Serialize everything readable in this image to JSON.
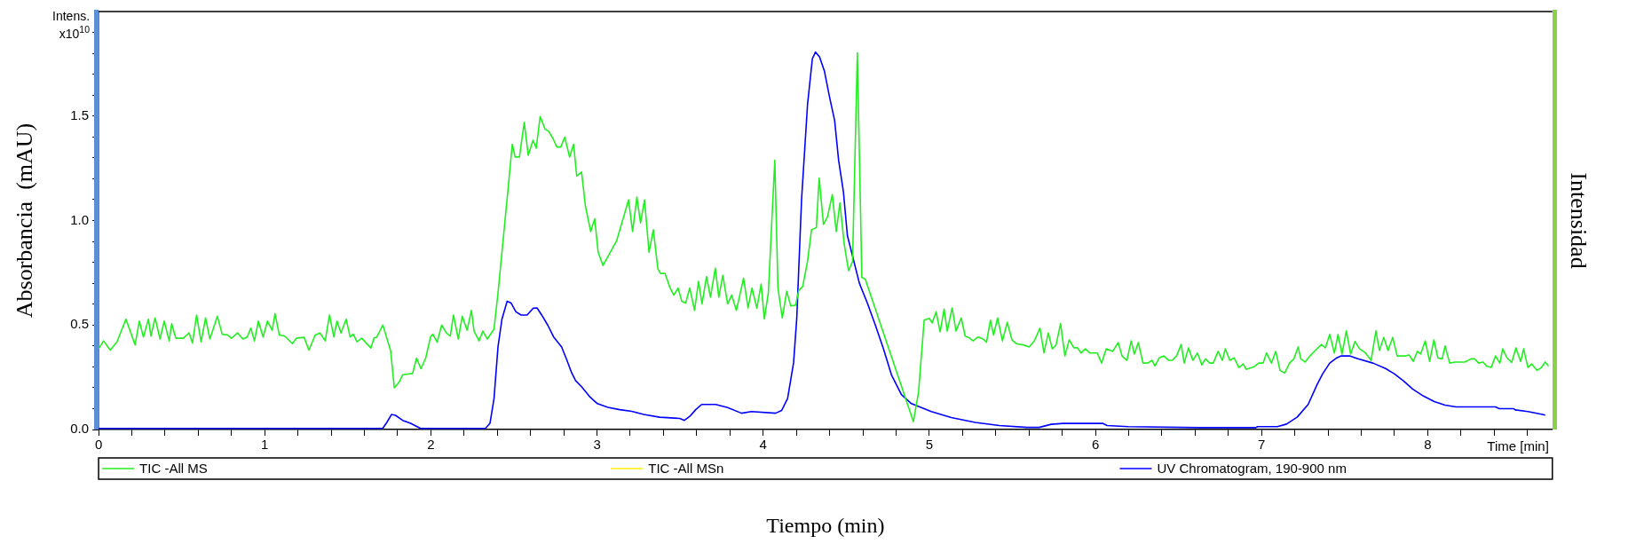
{
  "chart_data": {
    "type": "line",
    "xlabel": "Tiempo (min)",
    "ylabel": "Absorbancia  (mAU)",
    "y2label": "Intensidad",
    "annotations": [
      "Intens.\nx10$^{10}$",
      "Time [min]"
    ],
    "xlim": [
      0,
      8.75
    ],
    "ylim": [
      0,
      2
    ],
    "xticks": [
      0,
      {
        "value": 0.2,
        "label": null
      },
      {
        "value": 0.4,
        "label": null
      },
      {
        "value": 0.6,
        "label": null
      },
      {
        "value": 0.8,
        "label": null
      },
      1,
      {
        "value": 1.2,
        "label": null
      },
      {
        "value": 1.4,
        "label": null
      },
      {
        "value": 1.6,
        "label": null
      },
      {
        "value": 1.8,
        "label": null
      },
      2,
      {
        "value": 2.2,
        "label": null
      },
      {
        "value": 2.4,
        "label": null
      },
      {
        "value": 2.6,
        "label": null
      },
      {
        "value": 2.8,
        "label": null
      },
      3,
      {
        "value": 3.2,
        "label": null
      },
      {
        "value": 3.4,
        "label": null
      },
      {
        "value": 3.6,
        "label": null
      },
      {
        "value": 3.8,
        "label": null
      },
      4,
      {
        "value": 4.2,
        "label": null
      },
      {
        "value": 4.4,
        "label": null
      },
      {
        "value": 4.6,
        "label": null
      },
      {
        "value": 4.8,
        "label": null
      },
      5,
      {
        "value": 5.2,
        "label": null
      },
      {
        "value": 5.4,
        "label": null
      },
      {
        "value": 5.6,
        "label": null
      },
      {
        "value": 5.8,
        "label": null
      },
      6,
      {
        "value": 6.2,
        "label": null
      },
      {
        "value": 6.4,
        "label": null
      },
      {
        "value": 6.6,
        "label": null
      },
      {
        "value": 6.8,
        "label": null
      },
      7,
      {
        "value": 7.2,
        "label": null
      },
      {
        "value": 7.4,
        "label": null
      },
      {
        "value": 7.6,
        "label": null
      },
      {
        "value": 7.8,
        "label": null
      },
      8,
      {
        "value": 8.2,
        "label": null
      },
      {
        "value": 8.4,
        "label": null
      },
      {
        "value": 8.6,
        "label": null
      }
    ],
    "yticks": [
      {
        "value": 0,
        "label": "0.0"
      },
      {
        "value": 0.1,
        "label": null
      },
      {
        "value": 0.2,
        "label": null
      },
      {
        "value": 0.3,
        "label": null
      },
      {
        "value": 0.4,
        "label": null
      },
      0.5,
      {
        "value": 0.6,
        "label": null
      },
      {
        "value": 0.7,
        "label": null
      },
      {
        "value": 0.8,
        "label": null
      },
      {
        "value": 0.9,
        "label": null
      },
      {
        "value": 1,
        "label": "1.0"
      },
      {
        "value": 1.1,
        "label": null
      },
      {
        "value": 1.2,
        "label": null
      },
      {
        "value": 1.3,
        "label": null
      },
      {
        "value": 1.4,
        "label": null
      },
      1.5,
      {
        "value": 1.6,
        "label": null
      },
      {
        "value": 1.7,
        "label": null
      },
      {
        "value": 1.8,
        "label": null
      },
      {
        "value": 1.9,
        "label": null
      }
    ],
    "grid": false,
    "legend": "bottom",
    "marker": "none",
    "line_style": "solid",
    "series": [
      {
        "name": "TIC -All MS",
        "color": "#22ee22",
        "x": [
          0,
          0.03,
          0.07,
          0.11,
          0.165,
          0.22,
          0.245,
          0.27,
          0.3,
          0.315,
          0.34,
          0.37,
          0.395,
          0.425,
          0.44,
          0.465,
          0.51,
          0.545,
          0.565,
          0.59,
          0.617,
          0.644,
          0.67,
          0.715,
          0.744,
          0.778,
          0.8,
          0.837,
          0.868,
          0.895,
          0.916,
          0.938,
          0.962,
          0.99,
          1.017,
          1.045,
          1.062,
          1.088,
          1.12,
          1.167,
          1.19,
          1.237,
          1.266,
          1.304,
          1.333,
          1.364,
          1.39,
          1.416,
          1.435,
          1.459,
          1.49,
          1.514,
          1.533,
          1.555,
          1.584,
          1.639,
          1.658,
          1.675,
          1.711,
          1.758,
          1.78,
          1.81,
          1.83,
          1.89,
          1.914,
          1.94,
          1.969,
          1.998,
          2.012,
          2.038,
          2.065,
          2.093,
          2.117,
          2.136,
          2.165,
          2.189,
          2.218,
          2.244,
          2.26,
          2.29,
          2.313,
          2.34,
          2.38,
          2.404,
          2.464,
          2.49,
          2.507,
          2.533,
          2.562,
          2.586,
          2.615,
          2.634,
          2.658,
          2.687,
          2.708,
          2.734,
          2.758,
          2.782,
          2.806,
          2.835,
          2.859,
          2.878,
          2.907,
          2.93,
          2.962,
          2.986,
          3.007,
          3.036,
          3.118,
          3.19,
          3.214,
          3.24,
          3.262,
          3.286,
          3.313,
          3.339,
          3.366,
          3.382,
          3.409,
          3.438,
          3.462,
          3.488,
          3.51,
          3.534,
          3.558,
          3.587,
          3.611,
          3.632,
          3.659,
          3.683,
          3.712,
          3.733,
          3.757,
          3.786,
          3.81,
          3.839,
          3.882,
          3.909,
          3.933,
          3.962,
          3.988,
          4.007,
          4.031,
          4.07,
          4.089,
          4.115,
          4.142,
          4.166,
          4.195,
          4.214,
          4.238,
          4.267,
          4.291,
          4.32,
          4.337,
          4.363,
          4.387,
          4.416,
          4.44,
          4.462,
          4.488,
          4.514,
          4.538,
          4.567,
          4.594,
          4.615,
          4.904,
          4.935,
          4.969,
          5.0,
          5.017,
          5.041,
          5.065,
          5.089,
          5.108,
          5.137,
          5.161,
          5.192,
          5.216,
          5.24,
          5.264,
          5.293,
          5.324,
          5.344,
          5.368,
          5.387,
          5.411,
          5.44,
          5.469,
          5.498,
          5.522,
          5.565,
          5.601,
          5.632,
          5.666,
          5.69,
          5.716,
          5.74,
          5.762,
          5.79,
          5.816,
          5.842,
          5.87,
          5.892,
          5.913,
          5.939,
          5.967,
          6.011,
          6.037,
          6.065,
          6.104,
          6.137,
          6.16,
          6.189,
          6.215,
          6.234,
          6.258,
          6.286,
          6.315,
          6.341,
          6.358,
          6.384,
          6.412,
          6.44,
          6.462,
          6.488,
          6.516,
          6.534,
          6.56,
          6.586,
          6.614,
          6.64,
          6.662,
          6.688,
          6.709,
          6.738,
          6.764,
          6.781,
          6.809,
          6.835,
          6.863,
          6.889,
          6.907,
          6.954,
          6.983,
          7.009,
          7.03,
          7.059,
          7.085,
          7.111,
          7.139,
          7.168,
          7.194,
          7.22,
          7.236,
          7.262,
          7.291,
          7.323,
          7.36,
          7.384,
          7.41,
          7.438,
          7.46,
          7.484,
          7.51,
          7.536,
          7.562,
          7.59,
          7.622,
          7.659,
          7.688,
          7.709,
          7.735,
          7.761,
          7.789,
          7.816,
          7.866,
          7.887,
          7.913,
          7.937,
          7.957,
          7.985,
          8.011,
          8.037,
          8.061,
          8.087,
          8.104,
          8.132,
          8.165,
          8.223,
          8.26,
          8.282,
          8.306,
          8.332,
          8.354,
          8.382,
          8.408,
          8.434,
          8.451,
          8.477,
          8.505,
          8.531,
          8.559,
          8.577,
          8.603,
          8.625,
          8.657,
          8.685,
          8.707,
          8.727
        ],
        "values": [
          0.386,
          0.424,
          0.38,
          0.418,
          0.528,
          0.405,
          0.519,
          0.443,
          0.528,
          0.447,
          0.534,
          0.433,
          0.519,
          0.424,
          0.506,
          0.437,
          0.437,
          0.462,
          0.414,
          0.548,
          0.42,
          0.534,
          0.433,
          0.542,
          0.456,
          0.452,
          0.437,
          0.462,
          0.433,
          0.443,
          0.485,
          0.424,
          0.519,
          0.443,
          0.519,
          0.475,
          0.555,
          0.452,
          0.447,
          0.411,
          0.437,
          0.441,
          0.38,
          0.452,
          0.462,
          0.424,
          0.548,
          0.443,
          0.519,
          0.462,
          0.528,
          0.443,
          0.456,
          0.42,
          0.437,
          0.39,
          0.437,
          0.443,
          0.5,
          0.376,
          0.2,
          0.228,
          0.262,
          0.268,
          0.342,
          0.291,
          0.342,
          0.443,
          0.456,
          0.418,
          0.5,
          0.462,
          0.447,
          0.548,
          0.433,
          0.542,
          0.475,
          0.57,
          0.471,
          0.424,
          0.471,
          0.433,
          0.481,
          0.652,
          1.146,
          1.365,
          1.304,
          1.304,
          1.47,
          1.312,
          1.384,
          1.346,
          1.498,
          1.437,
          1.428,
          1.394,
          1.352,
          1.352,
          1.399,
          1.304,
          1.365,
          1.213,
          1.232,
          1.07,
          0.947,
          1.008,
          0.848,
          0.785,
          0.903,
          1.099,
          0.947,
          1.112,
          0.989,
          1.099,
          0.848,
          0.956,
          0.77,
          0.747,
          0.747,
          0.681,
          0.643,
          0.677,
          0.614,
          0.605,
          0.677,
          0.57,
          0.709,
          0.601,
          0.732,
          0.633,
          0.772,
          0.633,
          0.738,
          0.601,
          0.643,
          0.57,
          0.724,
          0.582,
          0.677,
          0.58,
          0.696,
          0.529,
          0.652,
          1.289,
          0.677,
          0.534,
          0.662,
          0.591,
          0.595,
          0.665,
          0.684,
          0.804,
          0.956,
          0.966,
          1.203,
          0.981,
          1.017,
          1.124,
          0.947,
          1.084,
          0.886,
          0.76,
          0.804,
          1.802,
          0.728,
          0.719,
          0.038,
          0.177,
          0.523,
          0.532,
          0.51,
          0.563,
          0.468,
          0.576,
          0.471,
          0.582,
          0.471,
          0.534,
          0.447,
          0.439,
          0.424,
          0.443,
          0.433,
          0.418,
          0.523,
          0.452,
          0.534,
          0.424,
          0.513,
          0.428,
          0.411,
          0.405,
          0.395,
          0.424,
          0.485,
          0.367,
          0.462,
          0.386,
          0.403,
          0.507,
          0.352,
          0.429,
          0.391,
          0.391,
          0.366,
          0.386,
          0.366,
          0.366,
          0.318,
          0.386,
          0.374,
          0.416,
          0.352,
          0.331,
          0.424,
          0.361,
          0.416,
          0.318,
          0.318,
          0.331,
          0.304,
          0.343,
          0.352,
          0.331,
          0.331,
          0.352,
          0.407,
          0.318,
          0.391,
          0.331,
          0.366,
          0.309,
          0.338,
          0.318,
          0.318,
          0.374,
          0.331,
          0.386,
          0.331,
          0.343,
          0.297,
          0.314,
          0.288,
          0.3,
          0.318,
          0.318,
          0.366,
          0.318,
          0.374,
          0.283,
          0.27,
          0.318,
          0.338,
          0.395,
          0.338,
          0.323,
          0.352,
          0.378,
          0.407,
          0.391,
          0.455,
          0.366,
          0.455,
          0.361,
          0.472,
          0.361,
          0.421,
          0.386,
          0.369,
          0.331,
          0.472,
          0.378,
          0.441,
          0.378,
          0.441,
          0.352,
          0.352,
          0.357,
          0.326,
          0.374,
          0.361,
          0.424,
          0.326,
          0.429,
          0.343,
          0.338,
          0.4,
          0.318,
          0.323,
          0.323,
          0.338,
          0.338,
          0.318,
          0.323,
          0.304,
          0.297,
          0.352,
          0.318,
          0.386,
          0.343,
          0.321,
          0.391,
          0.326,
          0.386,
          0.297,
          0.314,
          0.283,
          0.297,
          0.323,
          0.304
        ]
      },
      {
        "name": "TIC -All MSn",
        "color": "#ffee00"
      },
      {
        "name": "UV Chromatogram, 190-900 nm",
        "color": "#0000ff",
        "x": [
          0,
          1.71,
          1.735,
          1.763,
          1.787,
          1.83,
          1.878,
          1.938,
          2.328,
          2.356,
          2.38,
          2.404,
          2.428,
          2.459,
          2.483,
          2.512,
          2.543,
          2.579,
          2.615,
          2.639,
          2.667,
          2.703,
          2.739,
          2.787,
          2.818,
          2.847,
          2.871,
          2.907,
          2.955,
          3.002,
          3.065,
          3.137,
          3.209,
          3.281,
          3.377,
          3.498,
          3.526,
          3.558,
          3.594,
          3.63,
          3.714,
          3.786,
          3.87,
          3.93,
          4.075,
          4.111,
          4.147,
          4.183,
          4.202,
          4.231,
          4.267,
          4.296,
          4.315,
          4.339,
          4.368,
          4.399,
          4.43,
          4.454,
          4.483,
          4.507,
          4.543,
          4.579,
          4.627,
          4.675,
          4.724,
          4.772,
          4.832,
          4.892,
          5.012,
          5.132,
          5.276,
          5.421,
          5.589,
          5.661,
          5.733,
          5.805,
          6.046,
          6.07,
          6.195,
          6.629,
          6.965,
          6.976,
          7.095,
          7.15,
          7.215,
          7.28,
          7.334,
          7.367,
          7.41,
          7.453,
          7.479,
          7.529,
          7.584,
          7.67,
          7.746,
          7.8,
          7.855,
          7.909,
          7.974,
          8.039,
          8.104,
          8.169,
          8.408,
          8.43,
          8.516,
          8.527,
          8.603,
          8.69,
          8.707
        ],
        "values": [
          0.005,
          0.005,
          0.034,
          0.072,
          0.068,
          0.044,
          0.03,
          0.005,
          0.005,
          0.03,
          0.148,
          0.395,
          0.529,
          0.614,
          0.605,
          0.563,
          0.548,
          0.548,
          0.58,
          0.582,
          0.548,
          0.5,
          0.443,
          0.395,
          0.333,
          0.272,
          0.234,
          0.205,
          0.158,
          0.124,
          0.106,
          0.095,
          0.087,
          0.072,
          0.059,
          0.053,
          0.044,
          0.063,
          0.095,
          0.12,
          0.12,
          0.105,
          0.078,
          0.086,
          0.078,
          0.091,
          0.148,
          0.319,
          0.529,
          1.099,
          1.555,
          1.774,
          1.806,
          1.783,
          1.717,
          1.593,
          1.479,
          1.289,
          1.137,
          0.928,
          0.814,
          0.7,
          0.605,
          0.5,
          0.386,
          0.262,
          0.167,
          0.124,
          0.086,
          0.057,
          0.034,
          0.019,
          0.01,
          0.01,
          0.025,
          0.029,
          0.029,
          0.019,
          0.014,
          0.009,
          0.009,
          0.014,
          0.014,
          0.026,
          0.06,
          0.12,
          0.215,
          0.266,
          0.318,
          0.343,
          0.352,
          0.352,
          0.338,
          0.318,
          0.292,
          0.266,
          0.232,
          0.194,
          0.16,
          0.134,
          0.117,
          0.108,
          0.108,
          0.1,
          0.1,
          0.094,
          0.086,
          0.072,
          0.069
        ]
      }
    ]
  }
}
